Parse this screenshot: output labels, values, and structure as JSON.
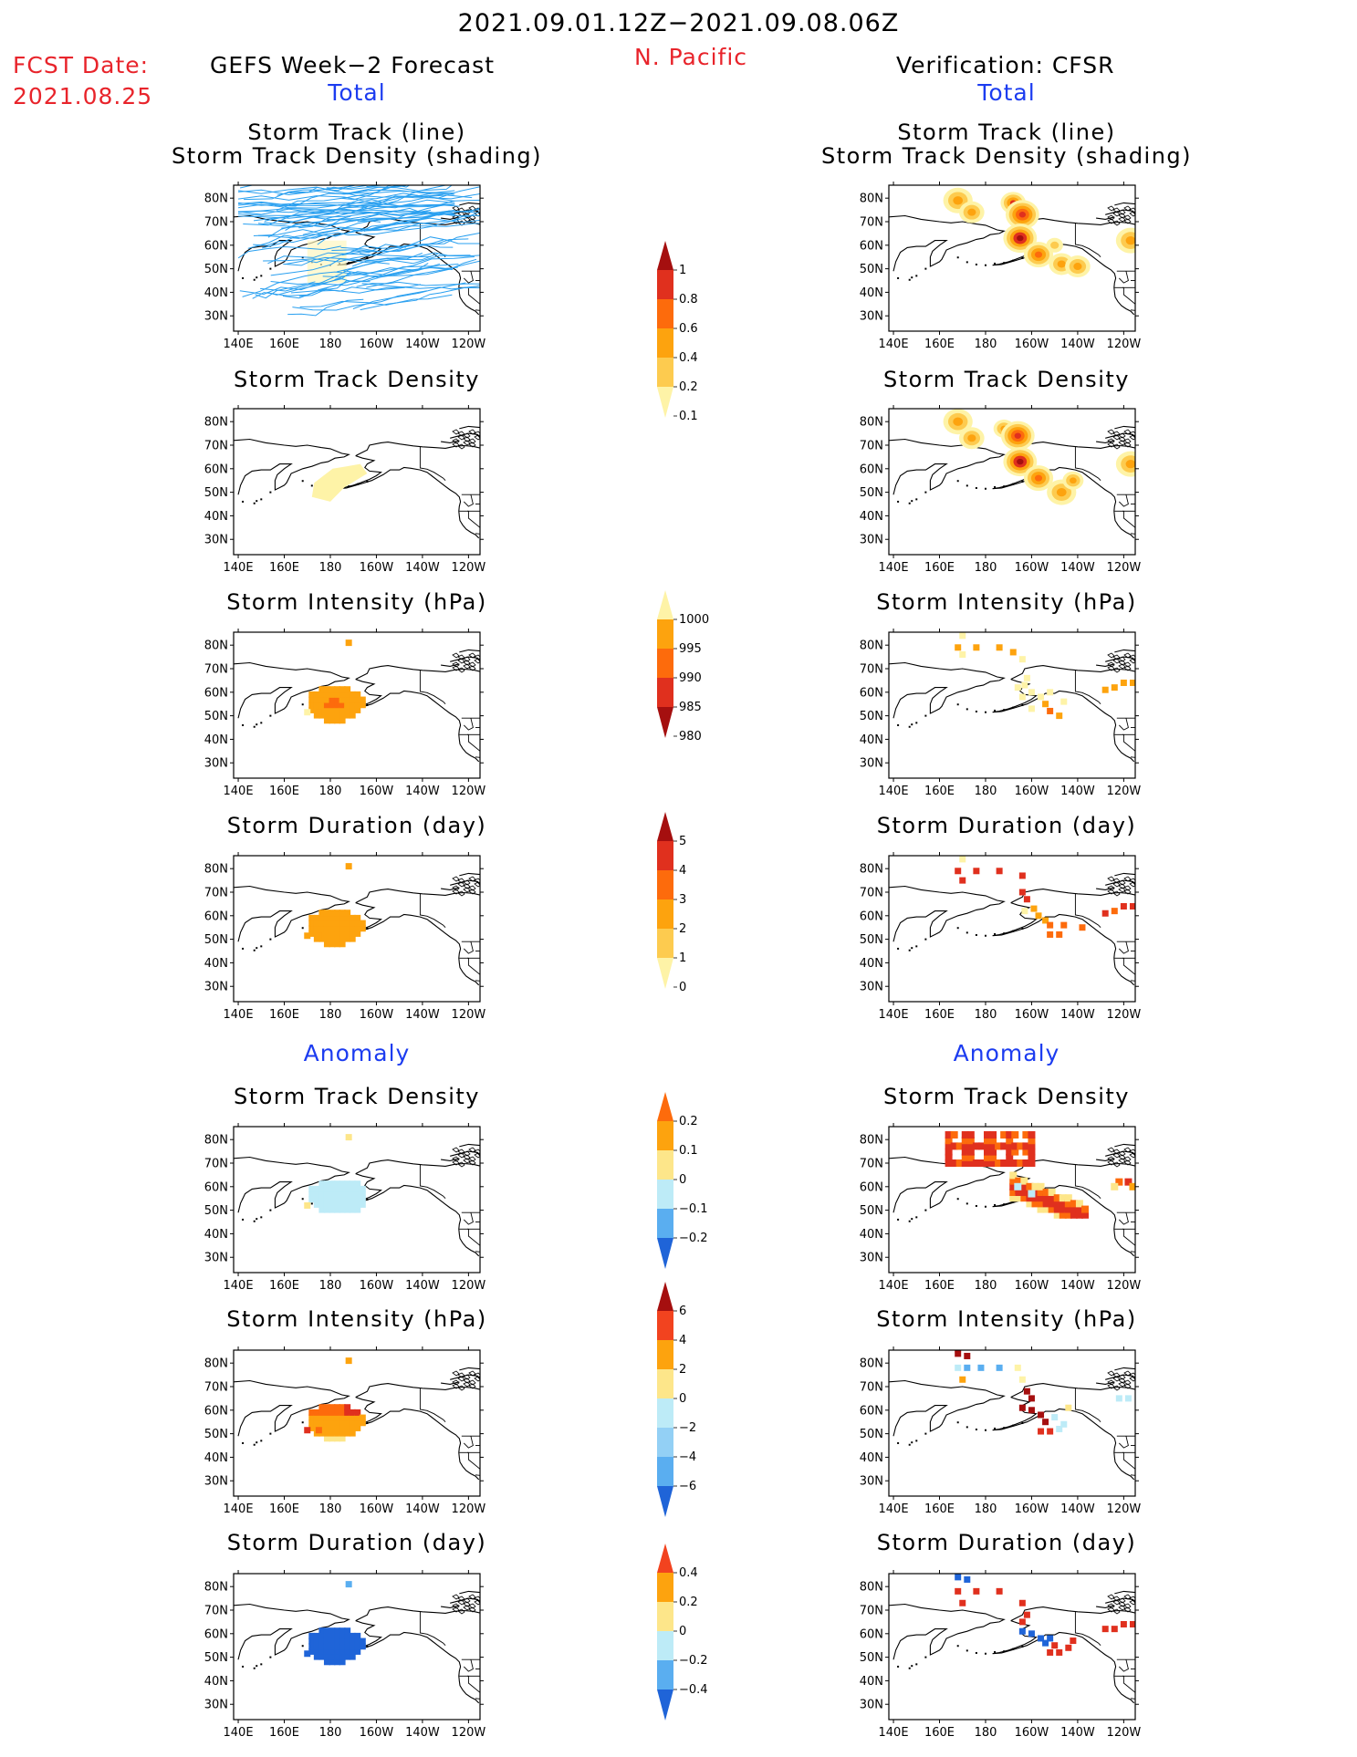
{
  "header": {
    "period": "2021.09.01.12Z−2021.09.08.06Z",
    "region": "N. Pacific",
    "fcst_label": "FCST Date:",
    "fcst_date": "2021.08.25",
    "left_title": "GEFS Week−2 Forecast",
    "right_title": "Verification: CFSR"
  },
  "sections": {
    "total": "Total",
    "anomaly": "Anomaly"
  },
  "panel_titles": {
    "track_line": "Storm Track (line)",
    "track_shading": "Storm Track Density (shading)",
    "density": "Storm Track Density",
    "intensity": "Storm Intensity (hPa)",
    "duration": "Storm Duration (day)"
  },
  "axes": {
    "lat_labels": [
      "80N",
      "70N",
      "60N",
      "50N",
      "40N",
      "30N"
    ],
    "lon_labels": [
      "140E",
      "160E",
      "180",
      "160W",
      "140W",
      "120W"
    ]
  },
  "colorbars": [
    {
      "name": "density-colorbar",
      "labels": [
        "1",
        "0.8",
        "0.6",
        "0.4",
        "0.2",
        "0.1"
      ],
      "colors": [
        "#a50f0f",
        "#e0301e",
        "#fd6b0c",
        "#fda30e",
        "#fdcb4f",
        "#fef3a7"
      ]
    },
    {
      "name": "intensity-colorbar",
      "labels": [
        "1000",
        "995",
        "990",
        "985",
        "980"
      ],
      "colors": [
        "#fef3a7",
        "#fda30e",
        "#fd6b0c",
        "#e0301e",
        "#a50f0f"
      ]
    },
    {
      "name": "duration-colorbar",
      "labels": [
        "5",
        "4",
        "3",
        "2",
        "1",
        "0"
      ],
      "colors": [
        "#a50f0f",
        "#e0301e",
        "#fd6b0c",
        "#fda30e",
        "#fdcb4f",
        "#fef3a7"
      ]
    },
    {
      "name": "density-anomaly-colorbar",
      "labels": [
        "0.2",
        "0.1",
        "0",
        "−0.1",
        "−0.2"
      ],
      "colors": [
        "#fd6b0c",
        "#fda30e",
        "#fde68a",
        "#bdebf7",
        "#5aaef0",
        "#1f64d8"
      ]
    },
    {
      "name": "intensity-anomaly-colorbar",
      "labels": [
        "6",
        "4",
        "2",
        "0",
        "−2",
        "−4",
        "−6"
      ],
      "colors": [
        "#a50f0f",
        "#f2431f",
        "#fda30e",
        "#fde68a",
        "#bdebf7",
        "#93d0f5",
        "#5aaef0",
        "#1f64d8"
      ]
    },
    {
      "name": "duration-anomaly-colorbar",
      "labels": [
        "0.4",
        "0.2",
        "0",
        "−0.2",
        "−0.4"
      ],
      "colors": [
        "#f2431f",
        "#fda30e",
        "#fde68a",
        "#bdebf7",
        "#5aaef0",
        "#1f64d8"
      ]
    }
  ]
}
